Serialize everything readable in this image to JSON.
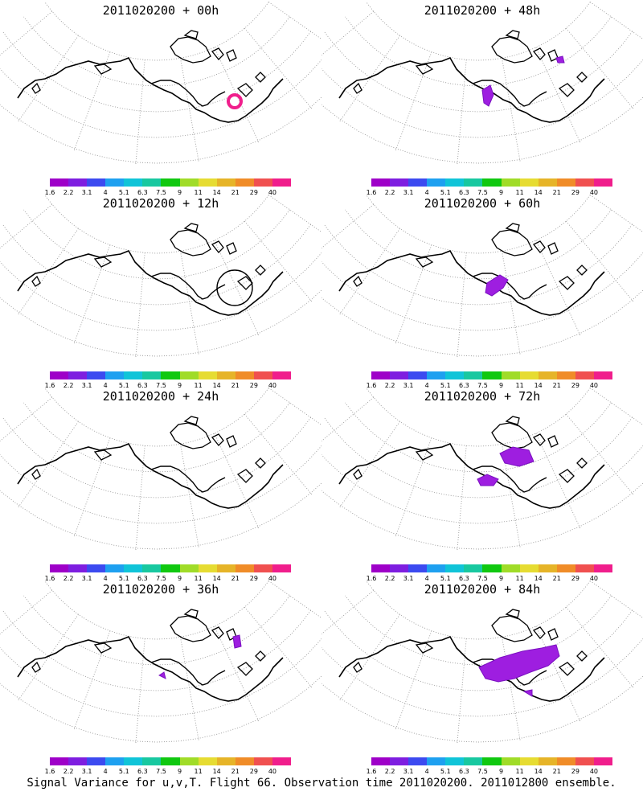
{
  "panels": [
    {
      "title": "2011020200 + 00h",
      "lead": "00h"
    },
    {
      "title": "2011020200 + 48h",
      "lead": "48h"
    },
    {
      "title": "2011020200 + 12h",
      "lead": "12h"
    },
    {
      "title": "2011020200 + 60h",
      "lead": "60h"
    },
    {
      "title": "2011020200 + 24h",
      "lead": "24h"
    },
    {
      "title": "2011020200 + 72h",
      "lead": "72h"
    },
    {
      "title": "2011020200 + 36h",
      "lead": "36h"
    },
    {
      "title": "2011020200 + 84h",
      "lead": "84h"
    }
  ],
  "colorbar": {
    "labels": [
      "1.6",
      "2.2",
      "3.1",
      "4",
      "5.1",
      "6.3",
      "7.5",
      "9",
      "11",
      "14",
      "21",
      "29",
      "40"
    ],
    "colors": [
      "#9e00c8",
      "#7e1ee0",
      "#3c4af0",
      "#1ea0f0",
      "#10c4d8",
      "#18c8a0",
      "#10c810",
      "#a0dc28",
      "#e6dc32",
      "#e6b428",
      "#f08c28",
      "#f05050",
      "#f01e8c"
    ]
  },
  "footer": "Signal Variance for u,v,T. Flight 66. Observation time 2011020200. 2011012800 ensemble."
}
